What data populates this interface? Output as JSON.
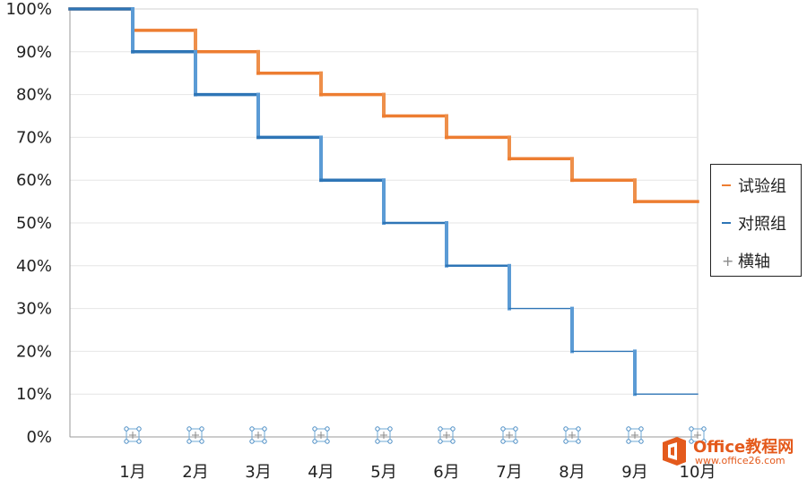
{
  "chart_data": {
    "type": "line",
    "step": true,
    "title": "",
    "xlabel": "",
    "ylabel": "",
    "categories": [
      "1月",
      "2月",
      "3月",
      "4月",
      "5月",
      "6月",
      "7月",
      "8月",
      "9月",
      "10月"
    ],
    "x_range": [
      0,
      10
    ],
    "ylim": [
      0,
      100
    ],
    "y_ticks": [
      "0%",
      "10%",
      "20%",
      "30%",
      "40%",
      "50%",
      "60%",
      "70%",
      "80%",
      "90%",
      "100%"
    ],
    "y_tick_values": [
      0,
      10,
      20,
      30,
      40,
      50,
      60,
      70,
      80,
      90,
      100
    ],
    "grid": true,
    "legend_position": "right",
    "series": [
      {
        "name": "试验组",
        "color": "#ED7D31",
        "points": [
          [
            0,
            100
          ],
          [
            1,
            100
          ],
          [
            1,
            95
          ],
          [
            2,
            95
          ],
          [
            2,
            90
          ],
          [
            3,
            90
          ],
          [
            3,
            85
          ],
          [
            4,
            85
          ],
          [
            4,
            80
          ],
          [
            5,
            80
          ],
          [
            5,
            75
          ],
          [
            6,
            75
          ],
          [
            6,
            70
          ],
          [
            7,
            70
          ],
          [
            7,
            65
          ],
          [
            8,
            65
          ],
          [
            8,
            60
          ],
          [
            9,
            60
          ],
          [
            9,
            55
          ],
          [
            10,
            55
          ]
        ]
      },
      {
        "name": "对照组",
        "color": "#2E75B6",
        "points": [
          [
            0,
            100
          ],
          [
            1,
            100
          ],
          [
            1,
            90
          ],
          [
            2,
            90
          ],
          [
            2,
            80
          ],
          [
            3,
            80
          ],
          [
            3,
            70
          ],
          [
            4,
            70
          ],
          [
            4,
            60
          ],
          [
            5,
            60
          ],
          [
            5,
            50
          ],
          [
            6,
            50
          ],
          [
            6,
            40
          ],
          [
            7,
            40
          ],
          [
            7,
            30
          ],
          [
            8,
            30
          ],
          [
            8,
            20
          ],
          [
            9,
            20
          ],
          [
            9,
            10
          ],
          [
            10,
            10
          ]
        ]
      },
      {
        "name": "横轴",
        "color": "#8a8a8a",
        "marker": "plus",
        "points": [
          [
            1,
            0
          ],
          [
            2,
            0
          ],
          [
            3,
            0
          ],
          [
            4,
            0
          ],
          [
            5,
            0
          ],
          [
            6,
            0
          ],
          [
            7,
            0
          ],
          [
            8,
            0
          ],
          [
            9,
            0
          ],
          [
            10,
            0
          ]
        ]
      }
    ],
    "legend": [
      "试验组",
      "对照组",
      "横轴"
    ]
  },
  "watermark": {
    "title": "Office教程网",
    "url": "www.office26.com"
  }
}
